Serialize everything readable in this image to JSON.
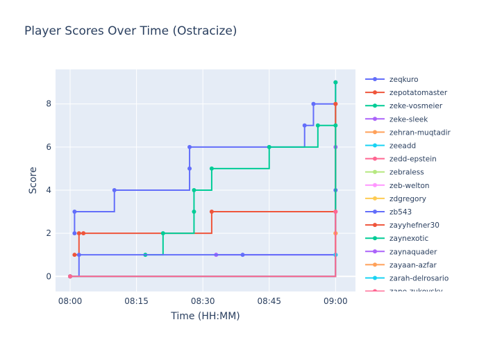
{
  "chart_data": {
    "type": "line",
    "line_shape": "step",
    "title": "Player Scores Over Time (Ostracize)",
    "xlabel": "Time (HH:MM)",
    "ylabel": "Score",
    "x_ticks": [
      "08:00",
      "08:15",
      "08:30",
      "08:45",
      "09:00"
    ],
    "x_tick_values": [
      0,
      15,
      30,
      45,
      60
    ],
    "x_range_minutes_after_0800": [
      -3.3,
      64.5
    ],
    "y_ticks": [
      0,
      2,
      4,
      6,
      8
    ],
    "ylim": [
      -0.7,
      9.6
    ],
    "grid": true,
    "plot_background": "#e5ecf6",
    "legend_position": "right",
    "series": [
      {
        "name": "zeqkuro",
        "color": "#636efa",
        "x": [
          "08:01",
          "08:01",
          "08:10",
          "08:27",
          "08:27",
          "08:45",
          "08:53",
          "08:55",
          "09:00"
        ],
        "y": [
          2,
          3,
          4,
          5,
          6,
          6,
          7,
          8,
          9
        ]
      },
      {
        "name": "zepotatomaster",
        "color": "#ef553b",
        "x": [
          "08:01",
          "08:02",
          "08:03",
          "08:32",
          "09:00"
        ],
        "y": [
          1,
          2,
          2,
          3,
          8
        ]
      },
      {
        "name": "zeke-vosmeier",
        "color": "#00cc96",
        "x": [
          "08:17",
          "08:21",
          "08:28",
          "08:28",
          "08:32",
          "08:45",
          "08:56",
          "09:00"
        ],
        "y": [
          1,
          2,
          3,
          4,
          5,
          6,
          7,
          9
        ]
      },
      {
        "name": "zeke-sleek",
        "color": "#ab63fa",
        "x": [
          "08:33",
          "09:00"
        ],
        "y": [
          1,
          6
        ]
      },
      {
        "name": "zehran-muqtadir",
        "color": "#ffa15a",
        "x": [
          "08:00",
          "09:00"
        ],
        "y": [
          0,
          2
        ]
      },
      {
        "name": "zeeadd",
        "color": "#19d3f3",
        "x": [
          "08:00",
          "09:00"
        ],
        "y": [
          0,
          1
        ]
      },
      {
        "name": "zedd-epstein",
        "color": "#ff6692",
        "x": [
          "08:00",
          "09:00"
        ],
        "y": [
          0,
          3
        ]
      },
      {
        "name": "zebraless",
        "color": "#b6e880",
        "x": [
          "08:00",
          "09:00"
        ],
        "y": [
          0,
          2
        ]
      },
      {
        "name": "zeb-welton",
        "color": "#ff97ff",
        "x": [
          "08:00",
          "09:00"
        ],
        "y": [
          0,
          3
        ]
      },
      {
        "name": "zdgregory",
        "color": "#fecb52",
        "x": [
          "08:00",
          "09:00"
        ],
        "y": [
          0,
          2
        ]
      },
      {
        "name": "zb543",
        "color": "#636efa",
        "x": [
          "08:00",
          "08:02",
          "08:39",
          "09:00"
        ],
        "y": [
          0,
          1,
          1,
          4
        ]
      },
      {
        "name": "zayyhefner30",
        "color": "#ef553b",
        "x": [
          "08:00",
          "09:00"
        ],
        "y": [
          0,
          8
        ]
      },
      {
        "name": "zaynexotic",
        "color": "#00cc96",
        "x": [
          "08:00",
          "09:00"
        ],
        "y": [
          0,
          7
        ]
      },
      {
        "name": "zaynaquader",
        "color": "#ab63fa",
        "x": [
          "08:00",
          "09:00"
        ],
        "y": [
          0,
          1
        ]
      },
      {
        "name": "zayaan-azfar",
        "color": "#ffa15a",
        "x": [
          "08:00",
          "09:00"
        ],
        "y": [
          0,
          2
        ]
      },
      {
        "name": "zarah-delrosario",
        "color": "#19d3f3",
        "x": [
          "08:00",
          "09:00"
        ],
        "y": [
          0,
          1
        ]
      },
      {
        "name": "zane-zukovsky",
        "color": "#ff6692",
        "x": [
          "08:00",
          "09:00"
        ],
        "y": [
          0,
          3
        ]
      }
    ]
  }
}
